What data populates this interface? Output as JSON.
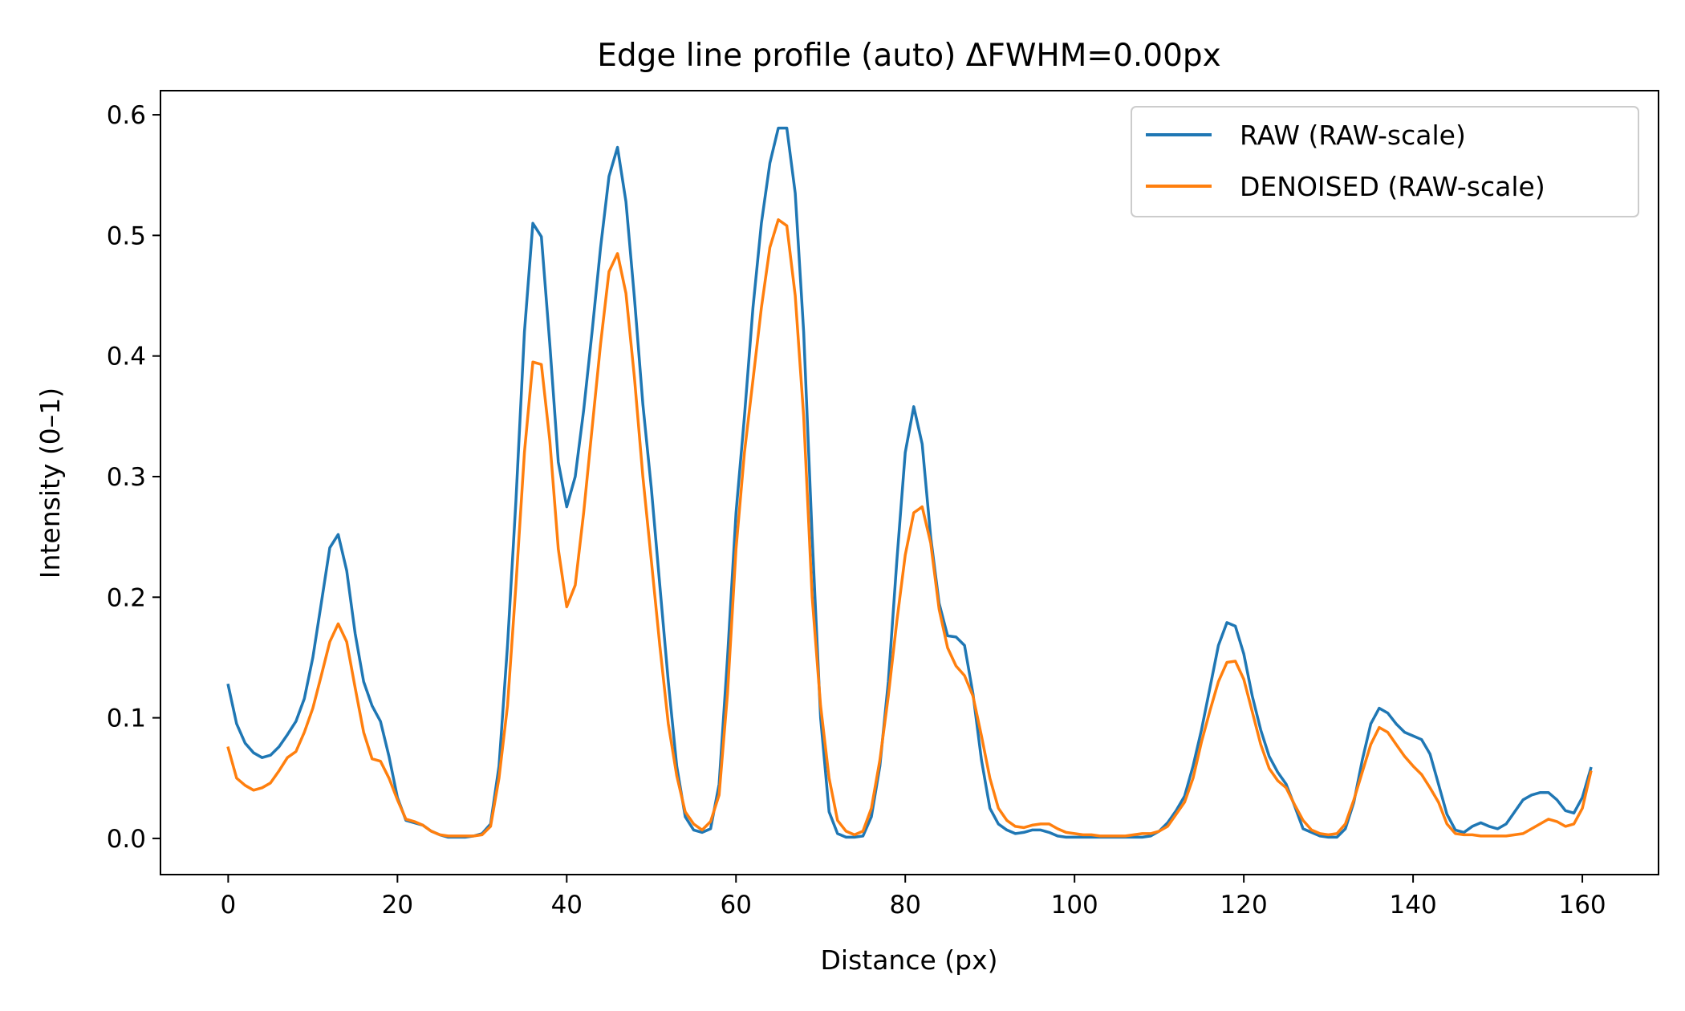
{
  "chart_data": {
    "type": "line",
    "title": "Edge line profile (auto)  ΔFWHM=0.00px",
    "xlabel": "Distance (px)",
    "ylabel": "Intensity (0–1)",
    "xlim": [
      -8,
      169
    ],
    "ylim": [
      -0.03,
      0.62
    ],
    "xticks": [
      0,
      20,
      40,
      60,
      80,
      100,
      120,
      140,
      160
    ],
    "yticks": [
      0.0,
      0.1,
      0.2,
      0.3,
      0.4,
      0.5,
      0.6
    ],
    "ytick_labels": [
      "0.0",
      "0.1",
      "0.2",
      "0.3",
      "0.4",
      "0.5",
      "0.6"
    ],
    "legend_position": "top-right",
    "series": [
      {
        "name": "RAW (RAW-scale)",
        "color": "#1f77b4",
        "points": [
          [
            0,
            0.127
          ],
          [
            1,
            0.095
          ],
          [
            2,
            0.079
          ],
          [
            3,
            0.071
          ],
          [
            4,
            0.067
          ],
          [
            5,
            0.069
          ],
          [
            6,
            0.076
          ],
          [
            7,
            0.086
          ],
          [
            8,
            0.097
          ],
          [
            9,
            0.116
          ],
          [
            10,
            0.15
          ],
          [
            11,
            0.195
          ],
          [
            12,
            0.241
          ],
          [
            13,
            0.252
          ],
          [
            14,
            0.222
          ],
          [
            15,
            0.17
          ],
          [
            16,
            0.13
          ],
          [
            17,
            0.11
          ],
          [
            18,
            0.097
          ],
          [
            19,
            0.068
          ],
          [
            20,
            0.034
          ],
          [
            21,
            0.015
          ],
          [
            22,
            0.013
          ],
          [
            23,
            0.011
          ],
          [
            24,
            0.006
          ],
          [
            25,
            0.003
          ],
          [
            26,
            0.001
          ],
          [
            27,
            0.001
          ],
          [
            28,
            0.001
          ],
          [
            29,
            0.002
          ],
          [
            30,
            0.004
          ],
          [
            31,
            0.012
          ],
          [
            32,
            0.06
          ],
          [
            33,
            0.16
          ],
          [
            34,
            0.28
          ],
          [
            35,
            0.42
          ],
          [
            36,
            0.51
          ],
          [
            37,
            0.499
          ],
          [
            38,
            0.41
          ],
          [
            39,
            0.312
          ],
          [
            40,
            0.275
          ],
          [
            41,
            0.3
          ],
          [
            42,
            0.355
          ],
          [
            43,
            0.42
          ],
          [
            44,
            0.49
          ],
          [
            45,
            0.549
          ],
          [
            46,
            0.573
          ],
          [
            47,
            0.528
          ],
          [
            48,
            0.448
          ],
          [
            49,
            0.36
          ],
          [
            50,
            0.29
          ],
          [
            51,
            0.21
          ],
          [
            52,
            0.13
          ],
          [
            53,
            0.06
          ],
          [
            54,
            0.018
          ],
          [
            55,
            0.007
          ],
          [
            56,
            0.005
          ],
          [
            57,
            0.008
          ],
          [
            58,
            0.045
          ],
          [
            59,
            0.15
          ],
          [
            60,
            0.27
          ],
          [
            61,
            0.35
          ],
          [
            62,
            0.44
          ],
          [
            63,
            0.51
          ],
          [
            64,
            0.56
          ],
          [
            65,
            0.589
          ],
          [
            66,
            0.589
          ],
          [
            67,
            0.535
          ],
          [
            68,
            0.42
          ],
          [
            69,
            0.25
          ],
          [
            70,
            0.1
          ],
          [
            71,
            0.022
          ],
          [
            72,
            0.004
          ],
          [
            73,
            0.001
          ],
          [
            74,
            0.001
          ],
          [
            75,
            0.002
          ],
          [
            76,
            0.018
          ],
          [
            77,
            0.06
          ],
          [
            78,
            0.13
          ],
          [
            79,
            0.23
          ],
          [
            80,
            0.32
          ],
          [
            81,
            0.358
          ],
          [
            82,
            0.327
          ],
          [
            83,
            0.25
          ],
          [
            84,
            0.195
          ],
          [
            85,
            0.168
          ],
          [
            86,
            0.167
          ],
          [
            87,
            0.16
          ],
          [
            88,
            0.12
          ],
          [
            89,
            0.065
          ],
          [
            90,
            0.025
          ],
          [
            91,
            0.012
          ],
          [
            92,
            0.007
          ],
          [
            93,
            0.004
          ],
          [
            94,
            0.005
          ],
          [
            95,
            0.007
          ],
          [
            96,
            0.007
          ],
          [
            97,
            0.005
          ],
          [
            98,
            0.002
          ],
          [
            99,
            0.001
          ],
          [
            100,
            0.001
          ],
          [
            101,
            0.001
          ],
          [
            102,
            0.001
          ],
          [
            103,
            0.001
          ],
          [
            104,
            0.001
          ],
          [
            105,
            0.001
          ],
          [
            106,
            0.001
          ],
          [
            107,
            0.001
          ],
          [
            108,
            0.001
          ],
          [
            109,
            0.002
          ],
          [
            110,
            0.006
          ],
          [
            111,
            0.013
          ],
          [
            112,
            0.023
          ],
          [
            113,
            0.035
          ],
          [
            114,
            0.06
          ],
          [
            115,
            0.09
          ],
          [
            116,
            0.125
          ],
          [
            117,
            0.16
          ],
          [
            118,
            0.179
          ],
          [
            119,
            0.176
          ],
          [
            120,
            0.153
          ],
          [
            121,
            0.118
          ],
          [
            122,
            0.09
          ],
          [
            123,
            0.068
          ],
          [
            124,
            0.055
          ],
          [
            125,
            0.045
          ],
          [
            126,
            0.027
          ],
          [
            127,
            0.008
          ],
          [
            128,
            0.005
          ],
          [
            129,
            0.002
          ],
          [
            130,
            0.001
          ],
          [
            131,
            0.001
          ],
          [
            132,
            0.008
          ],
          [
            133,
            0.03
          ],
          [
            134,
            0.065
          ],
          [
            135,
            0.095
          ],
          [
            136,
            0.108
          ],
          [
            137,
            0.104
          ],
          [
            138,
            0.095
          ],
          [
            139,
            0.088
          ],
          [
            140,
            0.085
          ],
          [
            141,
            0.082
          ],
          [
            142,
            0.07
          ],
          [
            143,
            0.045
          ],
          [
            144,
            0.02
          ],
          [
            145,
            0.007
          ],
          [
            146,
            0.005
          ],
          [
            147,
            0.01
          ],
          [
            148,
            0.013
          ],
          [
            149,
            0.01
          ],
          [
            150,
            0.008
          ],
          [
            151,
            0.012
          ],
          [
            152,
            0.022
          ],
          [
            153,
            0.032
          ],
          [
            154,
            0.036
          ],
          [
            155,
            0.038
          ],
          [
            156,
            0.038
          ],
          [
            157,
            0.032
          ],
          [
            158,
            0.023
          ],
          [
            159,
            0.021
          ],
          [
            160,
            0.034
          ],
          [
            161,
            0.058
          ]
        ]
      },
      {
        "name": "DENOISED (RAW-scale)",
        "color": "#ff7f0e",
        "points": [
          [
            0,
            0.075
          ],
          [
            1,
            0.05
          ],
          [
            2,
            0.044
          ],
          [
            3,
            0.04
          ],
          [
            4,
            0.042
          ],
          [
            5,
            0.046
          ],
          [
            6,
            0.056
          ],
          [
            7,
            0.067
          ],
          [
            8,
            0.072
          ],
          [
            9,
            0.088
          ],
          [
            10,
            0.108
          ],
          [
            11,
            0.135
          ],
          [
            12,
            0.163
          ],
          [
            13,
            0.178
          ],
          [
            14,
            0.163
          ],
          [
            15,
            0.125
          ],
          [
            16,
            0.088
          ],
          [
            17,
            0.066
          ],
          [
            18,
            0.064
          ],
          [
            19,
            0.05
          ],
          [
            20,
            0.032
          ],
          [
            21,
            0.016
          ],
          [
            22,
            0.014
          ],
          [
            23,
            0.011
          ],
          [
            24,
            0.006
          ],
          [
            25,
            0.003
          ],
          [
            26,
            0.002
          ],
          [
            27,
            0.002
          ],
          [
            28,
            0.002
          ],
          [
            29,
            0.002
          ],
          [
            30,
            0.003
          ],
          [
            31,
            0.01
          ],
          [
            32,
            0.05
          ],
          [
            33,
            0.11
          ],
          [
            34,
            0.21
          ],
          [
            35,
            0.32
          ],
          [
            36,
            0.395
          ],
          [
            37,
            0.393
          ],
          [
            38,
            0.33
          ],
          [
            39,
            0.24
          ],
          [
            40,
            0.192
          ],
          [
            41,
            0.21
          ],
          [
            42,
            0.27
          ],
          [
            43,
            0.34
          ],
          [
            44,
            0.41
          ],
          [
            45,
            0.47
          ],
          [
            46,
            0.485
          ],
          [
            47,
            0.452
          ],
          [
            48,
            0.382
          ],
          [
            49,
            0.3
          ],
          [
            50,
            0.23
          ],
          [
            51,
            0.16
          ],
          [
            52,
            0.095
          ],
          [
            53,
            0.052
          ],
          [
            54,
            0.022
          ],
          [
            55,
            0.012
          ],
          [
            56,
            0.007
          ],
          [
            57,
            0.014
          ],
          [
            58,
            0.036
          ],
          [
            59,
            0.12
          ],
          [
            60,
            0.24
          ],
          [
            61,
            0.32
          ],
          [
            62,
            0.38
          ],
          [
            63,
            0.44
          ],
          [
            64,
            0.49
          ],
          [
            65,
            0.513
          ],
          [
            66,
            0.508
          ],
          [
            67,
            0.45
          ],
          [
            68,
            0.35
          ],
          [
            69,
            0.2
          ],
          [
            70,
            0.11
          ],
          [
            71,
            0.05
          ],
          [
            72,
            0.015
          ],
          [
            73,
            0.006
          ],
          [
            74,
            0.003
          ],
          [
            75,
            0.006
          ],
          [
            76,
            0.025
          ],
          [
            77,
            0.065
          ],
          [
            78,
            0.118
          ],
          [
            79,
            0.18
          ],
          [
            80,
            0.235
          ],
          [
            81,
            0.27
          ],
          [
            82,
            0.275
          ],
          [
            83,
            0.245
          ],
          [
            84,
            0.19
          ],
          [
            85,
            0.158
          ],
          [
            86,
            0.143
          ],
          [
            87,
            0.135
          ],
          [
            88,
            0.118
          ],
          [
            89,
            0.085
          ],
          [
            90,
            0.05
          ],
          [
            91,
            0.025
          ],
          [
            92,
            0.015
          ],
          [
            93,
            0.01
          ],
          [
            94,
            0.009
          ],
          [
            95,
            0.011
          ],
          [
            96,
            0.012
          ],
          [
            97,
            0.012
          ],
          [
            98,
            0.008
          ],
          [
            99,
            0.005
          ],
          [
            100,
            0.004
          ],
          [
            101,
            0.003
          ],
          [
            102,
            0.003
          ],
          [
            103,
            0.002
          ],
          [
            104,
            0.002
          ],
          [
            105,
            0.002
          ],
          [
            106,
            0.002
          ],
          [
            107,
            0.003
          ],
          [
            108,
            0.004
          ],
          [
            109,
            0.004
          ],
          [
            110,
            0.006
          ],
          [
            111,
            0.01
          ],
          [
            112,
            0.02
          ],
          [
            113,
            0.03
          ],
          [
            114,
            0.05
          ],
          [
            115,
            0.08
          ],
          [
            116,
            0.106
          ],
          [
            117,
            0.13
          ],
          [
            118,
            0.146
          ],
          [
            119,
            0.147
          ],
          [
            120,
            0.132
          ],
          [
            121,
            0.105
          ],
          [
            122,
            0.078
          ],
          [
            123,
            0.058
          ],
          [
            124,
            0.048
          ],
          [
            125,
            0.042
          ],
          [
            126,
            0.028
          ],
          [
            127,
            0.015
          ],
          [
            128,
            0.007
          ],
          [
            129,
            0.004
          ],
          [
            130,
            0.003
          ],
          [
            131,
            0.004
          ],
          [
            132,
            0.012
          ],
          [
            133,
            0.032
          ],
          [
            134,
            0.055
          ],
          [
            135,
            0.078
          ],
          [
            136,
            0.092
          ],
          [
            137,
            0.088
          ],
          [
            138,
            0.078
          ],
          [
            139,
            0.068
          ],
          [
            140,
            0.06
          ],
          [
            141,
            0.053
          ],
          [
            142,
            0.042
          ],
          [
            143,
            0.03
          ],
          [
            144,
            0.012
          ],
          [
            145,
            0.004
          ],
          [
            146,
            0.003
          ],
          [
            147,
            0.003
          ],
          [
            148,
            0.002
          ],
          [
            149,
            0.002
          ],
          [
            150,
            0.002
          ],
          [
            151,
            0.002
          ],
          [
            152,
            0.003
          ],
          [
            153,
            0.004
          ],
          [
            154,
            0.008
          ],
          [
            155,
            0.012
          ],
          [
            156,
            0.016
          ],
          [
            157,
            0.014
          ],
          [
            158,
            0.01
          ],
          [
            159,
            0.012
          ],
          [
            160,
            0.025
          ],
          [
            161,
            0.055
          ]
        ]
      }
    ]
  }
}
